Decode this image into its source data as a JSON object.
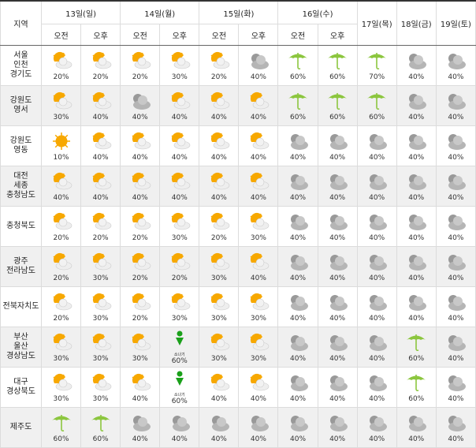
{
  "header": {
    "region_label": "지역",
    "days": [
      {
        "label": "13일(일)",
        "split": true
      },
      {
        "label": "14일(월)",
        "split": true
      },
      {
        "label": "15일(화)",
        "split": true
      },
      {
        "label": "16일(수)",
        "split": true
      },
      {
        "label": "17일(목)",
        "split": false
      },
      {
        "label": "18일(금)",
        "split": false
      },
      {
        "label": "19일(토)",
        "split": false
      }
    ],
    "am": "오전",
    "pm": "오후"
  },
  "shower_label": "소나기",
  "colors": {
    "sun": "#f7a800",
    "cloud": "#b5b5b5",
    "rain": "#8cc63f",
    "shower": "#1aa01a"
  },
  "rows": [
    {
      "region": [
        "서울",
        "인천",
        "경기도"
      ],
      "cells": [
        [
          "partly-cloudy",
          "20%"
        ],
        [
          "partly-cloudy",
          "20%"
        ],
        [
          "partly-cloudy",
          "20%"
        ],
        [
          "partly-cloudy",
          "30%"
        ],
        [
          "partly-cloudy",
          "20%"
        ],
        [
          "cloudy",
          "40%"
        ],
        [
          "rain",
          "60%"
        ],
        [
          "rain",
          "60%"
        ],
        [
          "rain",
          "70%"
        ],
        [
          "cloudy",
          "40%"
        ],
        [
          "cloudy",
          "40%"
        ]
      ]
    },
    {
      "region": [
        "강원도",
        "영서"
      ],
      "cells": [
        [
          "partly-cloudy",
          "30%"
        ],
        [
          "partly-cloudy",
          "40%"
        ],
        [
          "cloudy",
          "40%"
        ],
        [
          "partly-cloudy",
          "40%"
        ],
        [
          "partly-cloudy",
          "40%"
        ],
        [
          "partly-cloudy",
          "40%"
        ],
        [
          "rain",
          "60%"
        ],
        [
          "rain",
          "60%"
        ],
        [
          "rain",
          "60%"
        ],
        [
          "cloudy",
          "40%"
        ],
        [
          "cloudy",
          "40%"
        ]
      ]
    },
    {
      "region": [
        "강원도",
        "영동"
      ],
      "cells": [
        [
          "sunny",
          "10%"
        ],
        [
          "partly-cloudy",
          "40%"
        ],
        [
          "partly-cloudy",
          "40%"
        ],
        [
          "partly-cloudy",
          "40%"
        ],
        [
          "partly-cloudy",
          "40%"
        ],
        [
          "partly-cloudy",
          "40%"
        ],
        [
          "cloudy",
          "40%"
        ],
        [
          "cloudy",
          "40%"
        ],
        [
          "cloudy",
          "40%"
        ],
        [
          "cloudy",
          "40%"
        ],
        [
          "cloudy",
          "40%"
        ]
      ]
    },
    {
      "region": [
        "대전",
        "세종",
        "충청남도"
      ],
      "cells": [
        [
          "partly-cloudy",
          "40%"
        ],
        [
          "partly-cloudy",
          "40%"
        ],
        [
          "partly-cloudy",
          "40%"
        ],
        [
          "partly-cloudy",
          "40%"
        ],
        [
          "partly-cloudy",
          "40%"
        ],
        [
          "partly-cloudy",
          "40%"
        ],
        [
          "cloudy",
          "40%"
        ],
        [
          "cloudy",
          "40%"
        ],
        [
          "cloudy",
          "40%"
        ],
        [
          "cloudy",
          "40%"
        ],
        [
          "cloudy",
          "40%"
        ]
      ]
    },
    {
      "region": [
        "충청북도"
      ],
      "cells": [
        [
          "partly-cloudy",
          "20%"
        ],
        [
          "partly-cloudy",
          "20%"
        ],
        [
          "partly-cloudy",
          "20%"
        ],
        [
          "partly-cloudy",
          "30%"
        ],
        [
          "partly-cloudy",
          "20%"
        ],
        [
          "partly-cloudy",
          "30%"
        ],
        [
          "cloudy",
          "40%"
        ],
        [
          "cloudy",
          "40%"
        ],
        [
          "cloudy",
          "40%"
        ],
        [
          "cloudy",
          "40%"
        ],
        [
          "cloudy",
          "40%"
        ]
      ]
    },
    {
      "region": [
        "광주",
        "전라남도"
      ],
      "cells": [
        [
          "partly-cloudy",
          "20%"
        ],
        [
          "partly-cloudy",
          "30%"
        ],
        [
          "partly-cloudy",
          "20%"
        ],
        [
          "partly-cloudy",
          "20%"
        ],
        [
          "partly-cloudy",
          "30%"
        ],
        [
          "partly-cloudy",
          "40%"
        ],
        [
          "cloudy",
          "40%"
        ],
        [
          "cloudy",
          "40%"
        ],
        [
          "cloudy",
          "40%"
        ],
        [
          "cloudy",
          "40%"
        ],
        [
          "cloudy",
          "40%"
        ]
      ]
    },
    {
      "region": [
        "전북자치도"
      ],
      "cells": [
        [
          "partly-cloudy",
          "20%"
        ],
        [
          "partly-cloudy",
          "30%"
        ],
        [
          "partly-cloudy",
          "20%"
        ],
        [
          "partly-cloudy",
          "30%"
        ],
        [
          "partly-cloudy",
          "30%"
        ],
        [
          "partly-cloudy",
          "30%"
        ],
        [
          "cloudy",
          "40%"
        ],
        [
          "cloudy",
          "40%"
        ],
        [
          "cloudy",
          "40%"
        ],
        [
          "cloudy",
          "40%"
        ],
        [
          "cloudy",
          "40%"
        ]
      ]
    },
    {
      "region": [
        "부산",
        "울산",
        "경상남도"
      ],
      "cells": [
        [
          "partly-cloudy",
          "30%"
        ],
        [
          "partly-cloudy",
          "30%"
        ],
        [
          "partly-cloudy",
          "30%"
        ],
        [
          "shower",
          "60%"
        ],
        [
          "partly-cloudy",
          "30%"
        ],
        [
          "partly-cloudy",
          "30%"
        ],
        [
          "cloudy",
          "40%"
        ],
        [
          "cloudy",
          "40%"
        ],
        [
          "cloudy",
          "40%"
        ],
        [
          "rain",
          "60%"
        ],
        [
          "cloudy",
          "40%"
        ]
      ]
    },
    {
      "region": [
        "대구",
        "경상북도"
      ],
      "cells": [
        [
          "partly-cloudy",
          "30%"
        ],
        [
          "partly-cloudy",
          "30%"
        ],
        [
          "partly-cloudy",
          "40%"
        ],
        [
          "shower",
          "60%"
        ],
        [
          "partly-cloudy",
          "40%"
        ],
        [
          "partly-cloudy",
          "40%"
        ],
        [
          "cloudy",
          "40%"
        ],
        [
          "cloudy",
          "40%"
        ],
        [
          "cloudy",
          "40%"
        ],
        [
          "rain",
          "60%"
        ],
        [
          "cloudy",
          "40%"
        ]
      ]
    },
    {
      "region": [
        "제주도"
      ],
      "cells": [
        [
          "rain",
          "60%"
        ],
        [
          "rain",
          "60%"
        ],
        [
          "cloudy",
          "40%"
        ],
        [
          "cloudy",
          "40%"
        ],
        [
          "cloudy",
          "40%"
        ],
        [
          "cloudy",
          "40%"
        ],
        [
          "cloudy",
          "40%"
        ],
        [
          "cloudy",
          "40%"
        ],
        [
          "cloudy",
          "40%"
        ],
        [
          "cloudy",
          "40%"
        ],
        [
          "cloudy",
          "40%"
        ]
      ]
    }
  ]
}
